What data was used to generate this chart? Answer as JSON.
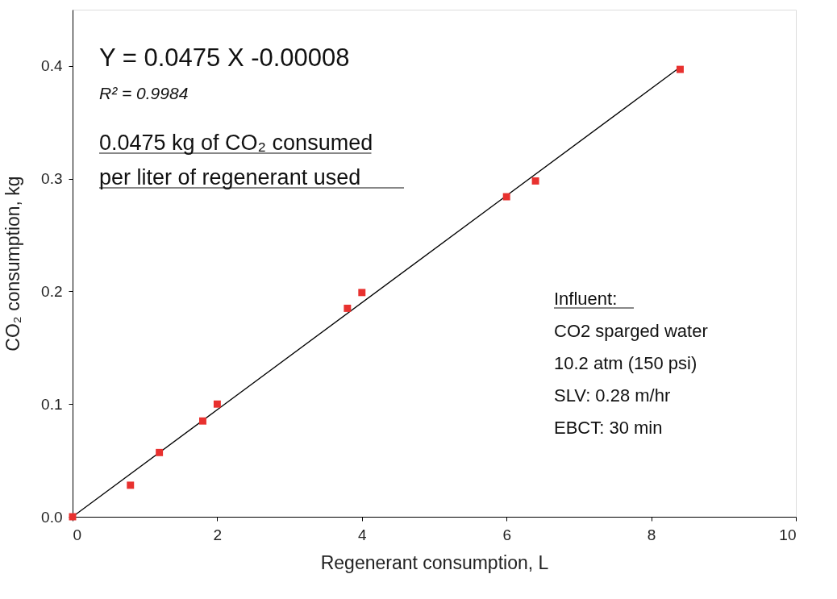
{
  "chart_data": {
    "type": "scatter",
    "xlabel": "Regenerant consumption, L",
    "ylabel": "CO₂ consumption, kg",
    "xlim": [
      0,
      10
    ],
    "ylim": [
      0,
      0.45
    ],
    "xticks": [
      0,
      2,
      4,
      6,
      8,
      10
    ],
    "yticks": [
      {
        "value": 0,
        "label": "0.0"
      },
      {
        "value": 0.1,
        "label": "0.1"
      },
      {
        "value": 0.2,
        "label": "0.2"
      },
      {
        "value": 0.3,
        "label": "0.3"
      },
      {
        "value": 0.4,
        "label": "0.4"
      }
    ],
    "grid": false,
    "series": [
      {
        "color": "#e8312f",
        "marker": "square",
        "x": [
          0,
          0.8,
          1.2,
          1.8,
          2.0,
          3.8,
          4.0,
          6.0,
          6.4,
          8.4
        ],
        "values": [
          0,
          0.028,
          0.057,
          0.085,
          0.1,
          0.185,
          0.199,
          0.284,
          0.298,
          0.397
        ]
      },
      {
        "type": "line",
        "color": "#000000",
        "line_style": "solid",
        "x": [
          0,
          8.4
        ],
        "values": [
          0,
          0.399
        ]
      }
    ],
    "annotations": [
      "Y = 0.0475 X -0.00008",
      "R² = 0.9984",
      "0.0475 kg of CO₂ consumed",
      "per liter of regenerant used",
      "Influent:",
      "CO2 sparged water",
      "10.2 atm (150 psi)",
      "SLV: 0.28 m/hr",
      "EBCT: 30 min"
    ]
  }
}
